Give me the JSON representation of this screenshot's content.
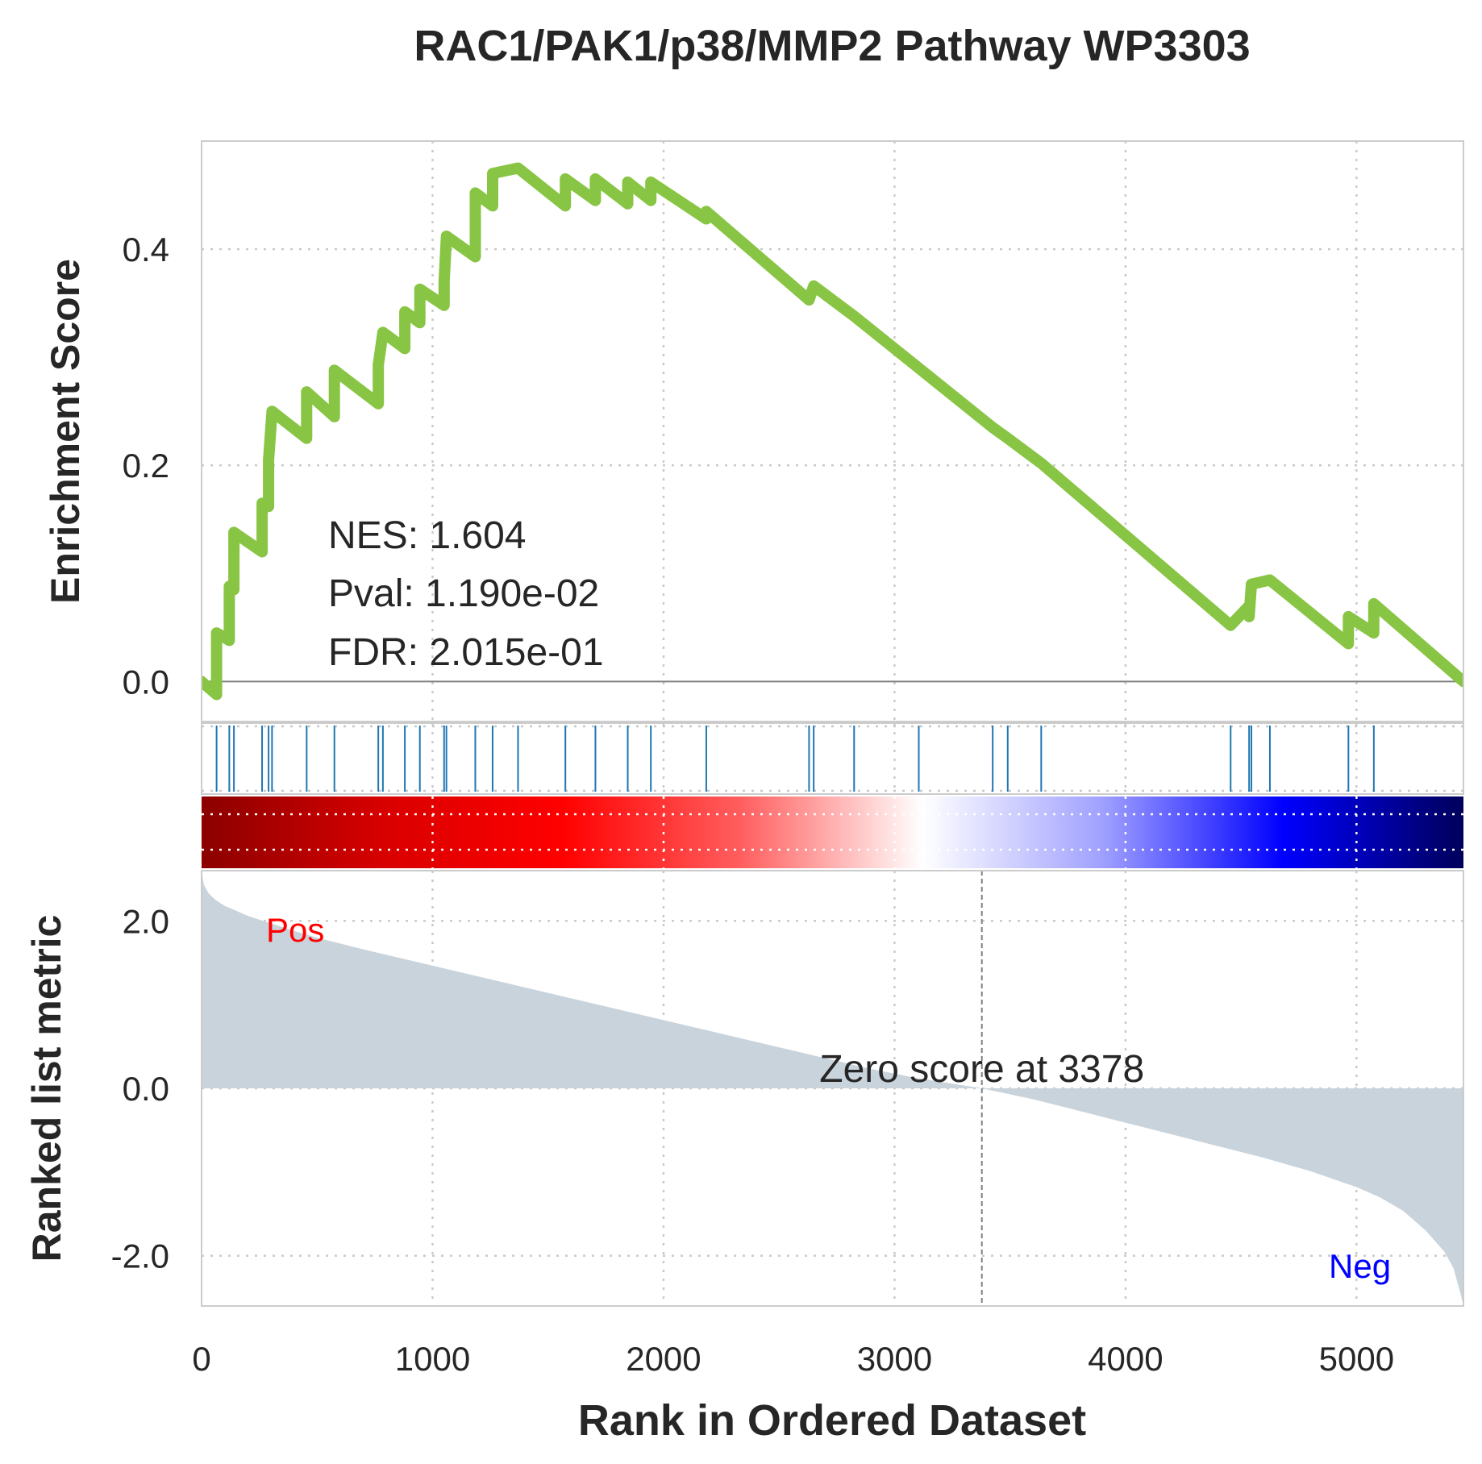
{
  "chart_data": {
    "type": "line",
    "title": "RAC1/PAK1/p38/MMP2 Pathway WP3303",
    "xlabel": "Rank in Ordered Dataset",
    "xlim": [
      0,
      5463
    ],
    "xticks": [
      "0",
      "1000",
      "2000",
      "3000",
      "4000",
      "5000"
    ],
    "xtick_values": [
      0,
      1000,
      2000,
      3000,
      4000,
      5000
    ],
    "grid": true,
    "enrichment_panel": {
      "ylabel": "Enrichment Score",
      "ylim": [
        -0.037,
        0.5
      ],
      "yticks": [
        "0.0",
        "0.2",
        "0.4"
      ],
      "ytick_values": [
        0.0,
        0.2,
        0.4
      ],
      "line_color": "#88c544",
      "stats": {
        "nes": "NES: 1.604",
        "pval": "Pval: 1.190e-02",
        "fdr": "FDR: 2.015e-01"
      },
      "hits": [
        65,
        120,
        140,
        262,
        290,
        305,
        455,
        575,
        765,
        785,
        880,
        945,
        1050,
        1060,
        1185,
        1260,
        1370,
        1575,
        1705,
        1845,
        1945,
        2185,
        2630,
        2650,
        2825,
        3105,
        3425,
        3490,
        3635,
        4455,
        4535,
        4545,
        4625,
        4965,
        5075
      ],
      "series": [
        {
          "x": [
            0,
            65,
            65,
            120,
            120,
            140,
            140,
            262,
            262,
            290,
            290,
            305,
            305,
            455,
            455,
            575,
            575,
            765,
            765,
            785,
            785,
            880,
            880,
            945,
            945,
            1050,
            1050,
            1060,
            1060,
            1185,
            1185,
            1260,
            1260,
            1370,
            1370,
            1575,
            1575,
            1705,
            1705,
            1845,
            1845,
            1945,
            1945,
            2185,
            2185,
            2630,
            2630,
            2650,
            2650,
            2825,
            2825,
            3105,
            3105,
            3425,
            3425,
            3490,
            3490,
            3635,
            3635,
            4455,
            4455,
            4535,
            4535,
            4545,
            4545,
            4625,
            4625,
            4965,
            4965,
            5075,
            5075,
            5463
          ],
          "y": [
            0.0,
            -0.012,
            0.045,
            0.038,
            0.088,
            0.085,
            0.138,
            0.12,
            0.165,
            0.162,
            0.205,
            0.25,
            0.25,
            0.225,
            0.268,
            0.245,
            0.288,
            0.257,
            0.293,
            0.323,
            0.323,
            0.308,
            0.342,
            0.332,
            0.363,
            0.348,
            0.37,
            0.412,
            0.412,
            0.393,
            0.452,
            0.44,
            0.47,
            0.475,
            0.475,
            0.44,
            0.465,
            0.445,
            0.465,
            0.442,
            0.462,
            0.445,
            0.462,
            0.428,
            0.435,
            0.353,
            0.353,
            0.366,
            0.366,
            0.338,
            0.338,
            0.29,
            0.29,
            0.235,
            0.235,
            0.225,
            0.225,
            0.202,
            0.202,
            0.052,
            0.052,
            0.07,
            0.06,
            0.09,
            0.09,
            0.094,
            0.094,
            0.035,
            0.06,
            0.045,
            0.072,
            0.0
          ]
        }
      ]
    },
    "ranked_panel": {
      "ylabel": "Ranked list metric",
      "ylim": [
        -2.6,
        2.6
      ],
      "yticks": [
        "2.0",
        "0.0",
        "-2.0"
      ],
      "ytick_values": [
        2.0,
        0.0,
        -2.0
      ],
      "pos_label": "Pos",
      "neg_label": "Neg",
      "pos_color": "#ff0000",
      "neg_color": "#0000ff",
      "fill_color": "#c8d3dc",
      "zero_cross": 3378,
      "zero_label": "Zero score at 3378",
      "metric": {
        "x": [
          0,
          10,
          30,
          60,
          100,
          150,
          200,
          300,
          400,
          500,
          700,
          900,
          1100,
          1300,
          1500,
          1700,
          1900,
          2100,
          2300,
          2500,
          2700,
          2900,
          3100,
          3378,
          3600,
          3800,
          4000,
          4200,
          4400,
          4600,
          4800,
          5000,
          5100,
          5200,
          5300,
          5380,
          5420,
          5450,
          5463
        ],
        "y": [
          2.6,
          2.43,
          2.33,
          2.25,
          2.18,
          2.12,
          2.06,
          1.97,
          1.88,
          1.8,
          1.66,
          1.53,
          1.4,
          1.27,
          1.14,
          1.01,
          0.88,
          0.75,
          0.62,
          0.49,
          0.36,
          0.23,
          0.12,
          0.0,
          -0.13,
          -0.27,
          -0.41,
          -0.55,
          -0.69,
          -0.83,
          -0.99,
          -1.18,
          -1.3,
          -1.46,
          -1.7,
          -1.95,
          -2.15,
          -2.45,
          -2.6
        ]
      },
      "colormap": [
        "#8b0000",
        "#d80000",
        "#ff0000",
        "#ff6060",
        "#ffffff",
        "#a0a0ff",
        "#0000ff",
        "#00005a"
      ]
    }
  }
}
